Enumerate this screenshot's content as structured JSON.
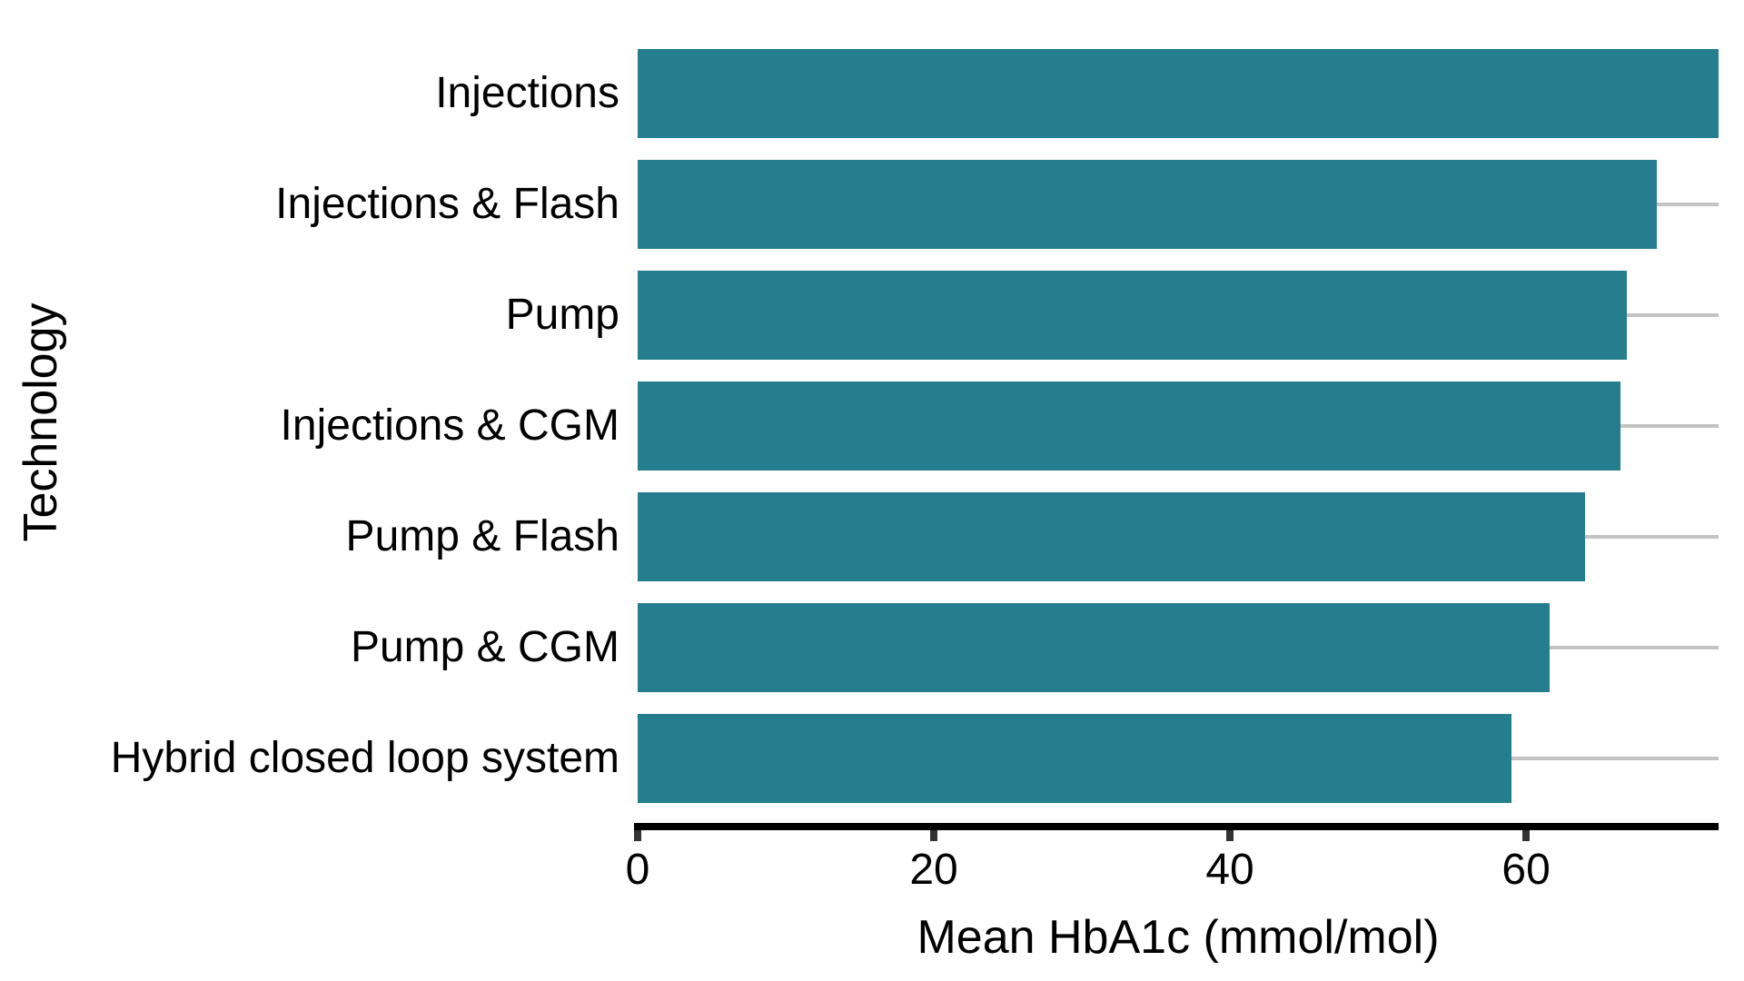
{
  "chart_data": {
    "type": "bar",
    "orientation": "horizontal",
    "title": "",
    "xlabel": "Mean HbA1c (mmol/mol)",
    "ylabel": "Technology",
    "categories": [
      "Injections",
      "Injections & Flash",
      "Pump",
      "Injections & CGM",
      "Pump & Flash",
      "Pump & CGM",
      "Hybrid closed loop system"
    ],
    "values": [
      73,
      68.8,
      66.8,
      66.4,
      64,
      61.6,
      59
    ],
    "error_upper_to": [
      73,
      73,
      73,
      73,
      73,
      73,
      73
    ],
    "error_note": "upper whiskers extend to right panel edge (clipped at axis max)",
    "xlim": [
      0,
      73
    ],
    "xticks": [
      0,
      20,
      40,
      60
    ],
    "grid": false,
    "legend": false,
    "colors": {
      "bar": "#247E8E",
      "error_bar": "#C3C3C3",
      "axis_line": "#000000",
      "tick_mark": "#333333",
      "text": "#000000",
      "background": "#FFFFFF"
    }
  }
}
